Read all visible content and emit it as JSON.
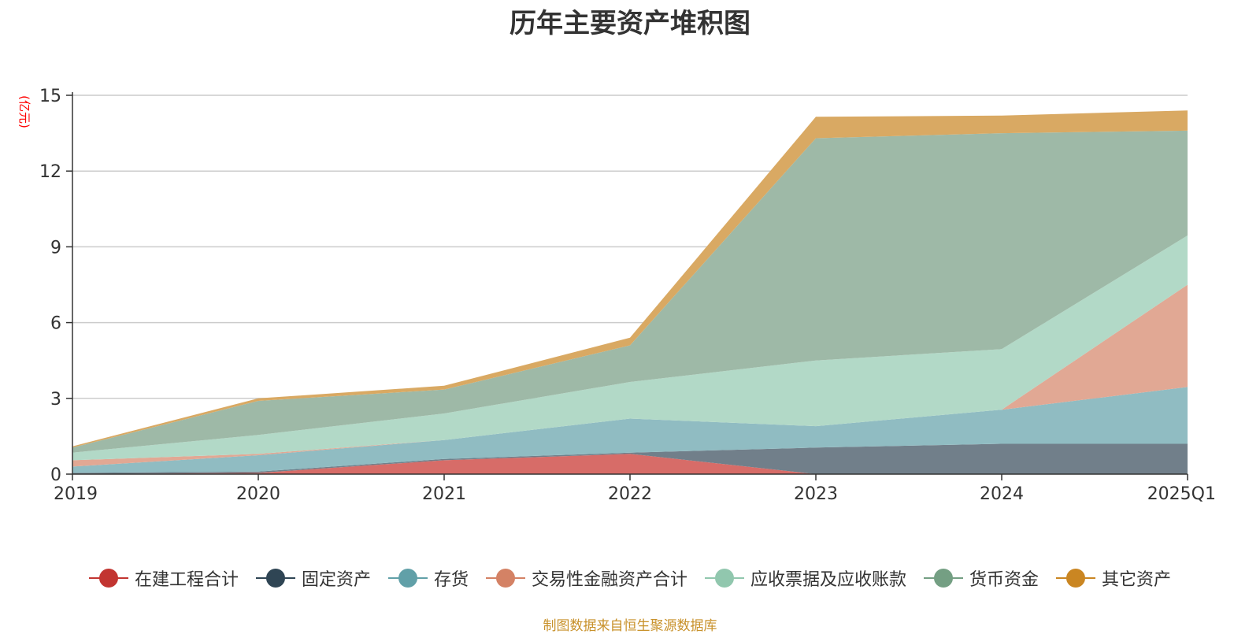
{
  "chart_data": {
    "type": "area",
    "stacked": true,
    "title": "历年主要资产堆积图",
    "ylabel": "(亿元)",
    "xlabel": "",
    "categories": [
      "2019",
      "2020",
      "2021",
      "2022",
      "2023",
      "2024",
      "2025Q1"
    ],
    "ylim": [
      0,
      15
    ],
    "yticks": [
      0,
      3,
      6,
      9,
      12,
      15
    ],
    "grid": true,
    "legend_position": "bottom",
    "series": [
      {
        "name": "在建工程合计",
        "color": "#c23531",
        "fill": "#d76c68",
        "values": [
          0.0,
          0.05,
          0.55,
          0.8,
          0.0,
          0.0,
          0.0
        ]
      },
      {
        "name": "固定资产",
        "color": "#2f4554",
        "fill": "#717f8a",
        "values": [
          0.05,
          0.05,
          0.05,
          0.05,
          1.05,
          1.2,
          1.2
        ]
      },
      {
        "name": "存货",
        "color": "#61a0a8",
        "fill": "#90bcc2",
        "values": [
          0.25,
          0.65,
          0.75,
          1.35,
          0.85,
          1.35,
          2.25
        ]
      },
      {
        "name": "交易性金融资产合计",
        "color": "#d48265",
        "fill": "#e1a894",
        "values": [
          0.25,
          0.05,
          0.0,
          0.0,
          0.0,
          0.0,
          4.05
        ]
      },
      {
        "name": "应收票据及应收账款",
        "color": "#91c7ae",
        "fill": "#b2d9c7",
        "values": [
          0.3,
          0.75,
          1.05,
          1.45,
          2.6,
          2.4,
          1.95
        ]
      },
      {
        "name": "货币资金",
        "color": "#749f83",
        "fill": "#9eb9a7",
        "values": [
          0.2,
          1.35,
          0.95,
          1.45,
          8.8,
          8.55,
          4.15
        ]
      },
      {
        "name": "其它资产",
        "color": "#ca8622",
        "fill": "#d9a963",
        "values": [
          0.05,
          0.1,
          0.15,
          0.3,
          0.85,
          0.7,
          0.8
        ]
      }
    ]
  },
  "source_note": "制图数据来自恒生聚源数据库"
}
